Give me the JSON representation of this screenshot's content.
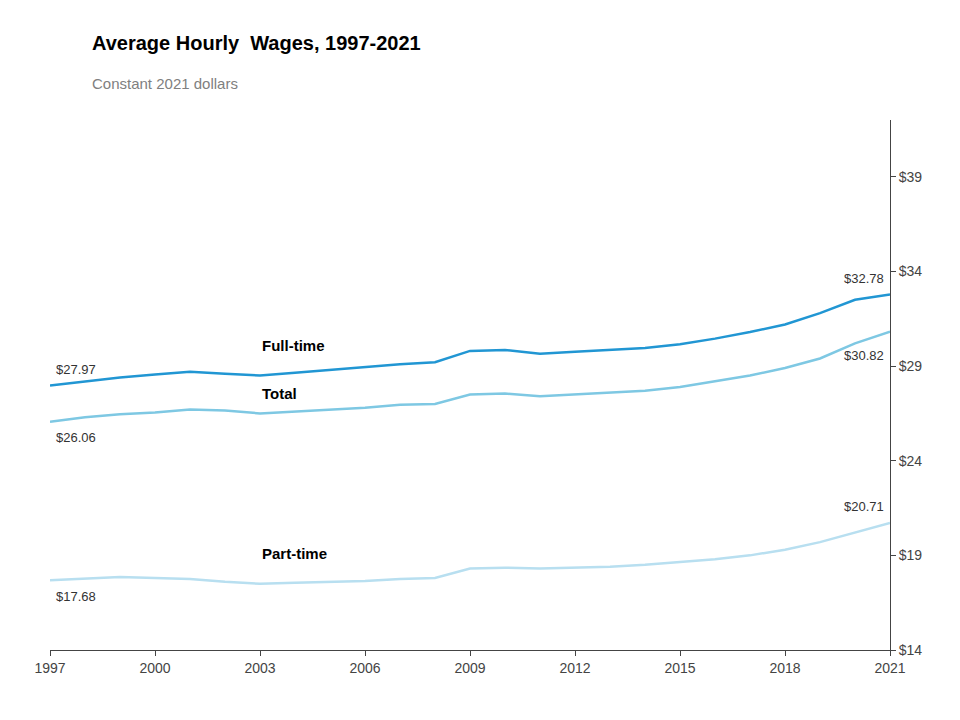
{
  "chart_data": {
    "type": "line",
    "title": "Average Hourly  Wages, 1997-2021",
    "subtitle": "Constant 2021 dollars",
    "x": [
      1997,
      1998,
      1999,
      2000,
      2001,
      2002,
      2003,
      2004,
      2005,
      2006,
      2007,
      2008,
      2009,
      2010,
      2011,
      2012,
      2013,
      2014,
      2015,
      2016,
      2017,
      2018,
      2019,
      2020,
      2021
    ],
    "series": [
      {
        "name": "Full-time",
        "color": "#2196d3",
        "values": [
          27.97,
          28.2,
          28.4,
          28.55,
          28.7,
          28.6,
          28.5,
          28.65,
          28.8,
          28.95,
          29.1,
          29.2,
          29.8,
          29.85,
          29.65,
          29.75,
          29.85,
          29.95,
          30.15,
          30.45,
          30.8,
          31.2,
          31.8,
          32.5,
          32.78
        ],
        "value_labels": [
          "$27.97",
          null,
          null,
          null,
          null,
          null,
          null,
          null,
          null,
          null,
          null,
          null,
          null,
          null,
          null,
          null,
          null,
          null,
          null,
          null,
          null,
          null,
          null,
          null,
          "$32.78"
        ]
      },
      {
        "name": "Total",
        "color": "#7ec8e3",
        "values": [
          26.06,
          26.3,
          26.45,
          26.55,
          26.7,
          26.65,
          26.5,
          26.6,
          26.7,
          26.8,
          26.95,
          27.0,
          27.5,
          27.55,
          27.4,
          27.5,
          27.6,
          27.7,
          27.9,
          28.2,
          28.5,
          28.9,
          29.4,
          30.2,
          30.82
        ],
        "value_labels": [
          "$26.06",
          null,
          null,
          null,
          null,
          null,
          null,
          null,
          null,
          null,
          null,
          null,
          null,
          null,
          null,
          null,
          null,
          null,
          null,
          null,
          null,
          null,
          null,
          null,
          "$30.82"
        ]
      },
      {
        "name": "Part-time",
        "color": "#b8dff0",
        "values": [
          17.68,
          17.75,
          17.85,
          17.8,
          17.75,
          17.6,
          17.5,
          17.55,
          17.6,
          17.65,
          17.75,
          17.8,
          18.3,
          18.35,
          18.3,
          18.35,
          18.4,
          18.5,
          18.65,
          18.8,
          19.0,
          19.3,
          19.7,
          20.2,
          20.71
        ],
        "value_labels": [
          "$17.68",
          null,
          null,
          null,
          null,
          null,
          null,
          null,
          null,
          null,
          null,
          null,
          null,
          null,
          null,
          null,
          null,
          null,
          null,
          null,
          null,
          null,
          null,
          null,
          "$20.71"
        ]
      }
    ],
    "xlim": [
      1997,
      2021
    ],
    "xticks": [
      1997,
      2000,
      2003,
      2006,
      2009,
      2012,
      2015,
      2018,
      2021
    ],
    "ylim": [
      14,
      42
    ],
    "yticks": [
      {
        "value": 14,
        "label": "$14"
      },
      {
        "value": 19,
        "label": "$19"
      },
      {
        "value": 24,
        "label": "$24"
      },
      {
        "value": 29,
        "label": "$29"
      },
      {
        "value": 34,
        "label": "$34"
      },
      {
        "value": 39,
        "label": "$39"
      }
    ],
    "grid": false
  }
}
